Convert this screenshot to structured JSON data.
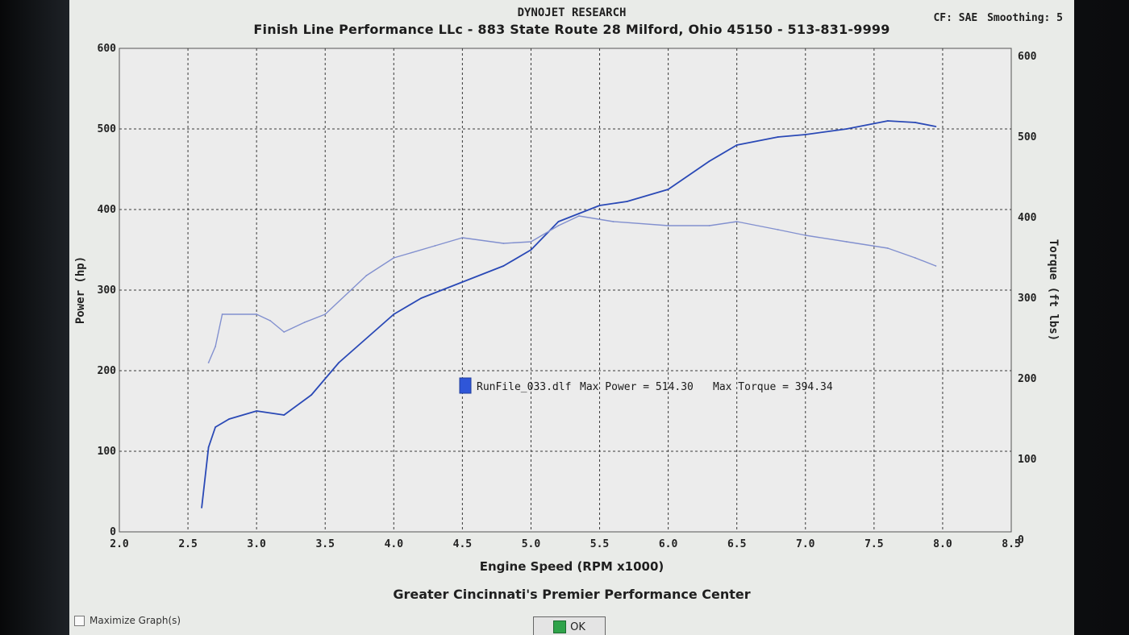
{
  "header": {
    "brand": "DYNOJET RESEARCH",
    "shop": "Finish Line Performance LLc - 883 State Route 28 Milford, Ohio 45150 - 513-831-9999",
    "cf": "CF: SAE",
    "smoothing": "Smoothing: 5"
  },
  "footer": {
    "tagline": "Greater Cincinnati's Premier Performance Center",
    "maximize_label": "Maximize Graph(s)",
    "ok_label": "OK"
  },
  "colors": {
    "power": "#2a49b6",
    "torque": "#8290cf",
    "grid": "#3a3a3a",
    "plot_bg": "#ececec"
  },
  "chart_data": {
    "type": "line",
    "title": "",
    "xlabel": "Engine Speed (RPM x1000)",
    "ylabel_left": "Power (hp)",
    "ylabel_right": "Torque (ft lbs)",
    "xlim": [
      2.0,
      8.5
    ],
    "ylim_left": [
      0,
      600
    ],
    "ylim_right": [
      0,
      600
    ],
    "x_ticks": [
      2.0,
      2.5,
      3.0,
      3.5,
      4.0,
      4.5,
      5.0,
      5.5,
      6.0,
      6.5,
      7.0,
      7.5,
      8.0,
      8.5
    ],
    "x_tick_labels": [
      "2.0",
      "2.5",
      "3.0",
      "3.5",
      "4.0",
      "4.5",
      "5.0",
      "5.5",
      "6.0",
      "6.5",
      "7.0",
      "7.5",
      "8.0",
      "8.5"
    ],
    "y_ticks_left": [
      "0",
      "100",
      "200",
      "300",
      "400",
      "500",
      "600"
    ],
    "y_ticks_right": [
      "0",
      "100",
      "200",
      "300",
      "400",
      "500",
      "600"
    ],
    "grid": true,
    "legend": {
      "run_file": "RunFile_033.dlf",
      "max_power_text": "Max Power = 514.30",
      "max_torque_text": "Max Torque = 394.34"
    },
    "series": [
      {
        "name": "Power",
        "axis": "left",
        "x": [
          2.6,
          2.65,
          2.7,
          2.8,
          3.0,
          3.2,
          3.4,
          3.6,
          4.0,
          4.2,
          4.5,
          4.8,
          5.0,
          5.2,
          5.35,
          5.5,
          5.7,
          6.0,
          6.3,
          6.5,
          6.8,
          7.0,
          7.3,
          7.6,
          7.8,
          7.95
        ],
        "values": [
          30,
          105,
          130,
          140,
          150,
          145,
          170,
          210,
          270,
          290,
          310,
          330,
          350,
          385,
          395,
          405,
          410,
          425,
          460,
          480,
          490,
          493,
          500,
          510,
          508,
          503
        ]
      },
      {
        "name": "Torque",
        "axis": "right",
        "x": [
          2.65,
          2.7,
          2.75,
          3.0,
          3.1,
          3.2,
          3.35,
          3.5,
          3.8,
          4.0,
          4.3,
          4.5,
          4.8,
          5.0,
          5.2,
          5.35,
          5.6,
          6.0,
          6.3,
          6.5,
          6.8,
          7.0,
          7.3,
          7.6,
          7.8,
          7.95
        ],
        "values": [
          210,
          230,
          270,
          270,
          262,
          248,
          260,
          270,
          318,
          340,
          355,
          365,
          358,
          360,
          380,
          392,
          385,
          380,
          380,
          385,
          375,
          368,
          360,
          352,
          340,
          330
        ]
      }
    ]
  }
}
